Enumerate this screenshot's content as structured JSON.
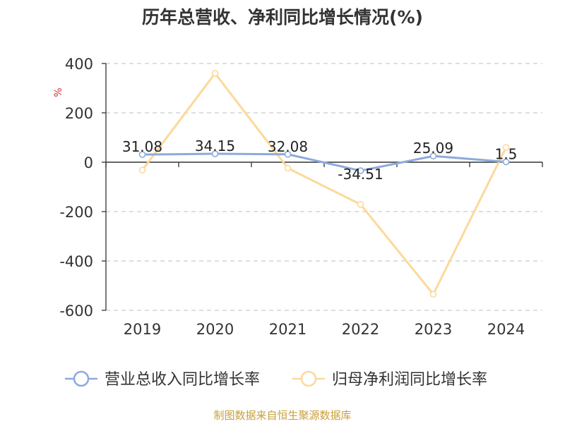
{
  "chart_data": {
    "type": "line",
    "title": "历年总营收、净利同比增长情况(%)",
    "ylabel": "%",
    "xlabel": "",
    "categories": [
      "2019",
      "2020",
      "2021",
      "2022",
      "2023",
      "2024"
    ],
    "ylim": [
      -600,
      400
    ],
    "yticks": [
      "400",
      "200",
      "0",
      "-200",
      "-400",
      "-600"
    ],
    "grid": true,
    "legend_position": "bottom",
    "series": [
      {
        "name": "营业总收入同比增长率",
        "color": "#8eaadb",
        "values": [
          31.08,
          34.15,
          32.08,
          -34.51,
          25.09,
          1.5
        ],
        "labels": [
          "31.08",
          "34.15",
          "32.08",
          "-34.51",
          "25.09",
          "1.5"
        ]
      },
      {
        "name": "归母净利润同比增长率",
        "color": "#fcd99a",
        "values": [
          -32,
          360,
          -24,
          -171,
          -535,
          60
        ]
      }
    ]
  },
  "footer": "制图数据来自恒生聚源数据库",
  "colors": {
    "title": "#333333",
    "axis_text": "#333333",
    "ylabel": "#d63030",
    "grid": "#cccccc"
  }
}
